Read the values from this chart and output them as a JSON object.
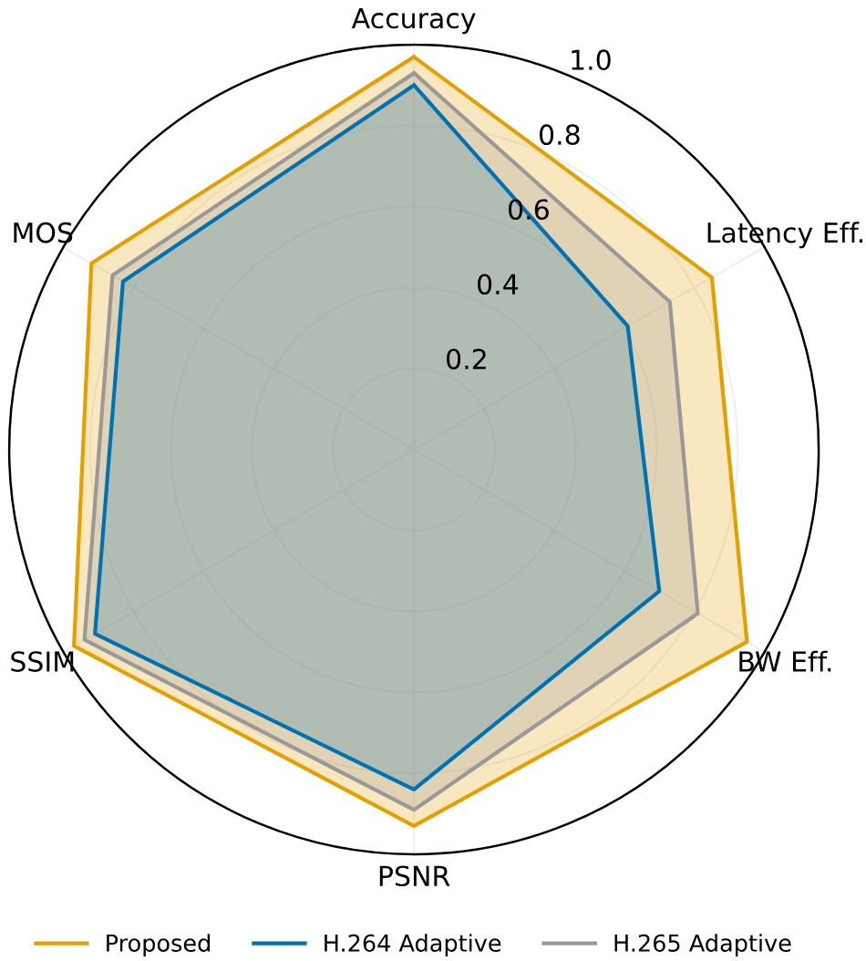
{
  "chart_data": {
    "type": "radar",
    "categories": [
      "Accuracy",
      "Latency Eff.",
      "BW Eff.",
      "PSNR",
      "SSIM",
      "MOS"
    ],
    "series": [
      {
        "name": "Proposed",
        "color": "#e69f00",
        "values": [
          0.97,
          0.85,
          0.95,
          0.93,
          0.97,
          0.92
        ]
      },
      {
        "name": "H.264 Adaptive",
        "color": "#0072b2",
        "values": [
          0.9,
          0.61,
          0.7,
          0.84,
          0.91,
          0.83
        ]
      },
      {
        "name": "H.265 Adaptive",
        "color": "#999999",
        "values": [
          0.93,
          0.73,
          0.81,
          0.89,
          0.94,
          0.86
        ]
      }
    ],
    "ylim": [
      0,
      1.0
    ],
    "yticks": [
      0.2,
      0.4,
      0.6,
      0.8,
      {
        "value": 1.0,
        "label": "1.0"
      }
    ],
    "grid": true,
    "legend": "bottom"
  }
}
